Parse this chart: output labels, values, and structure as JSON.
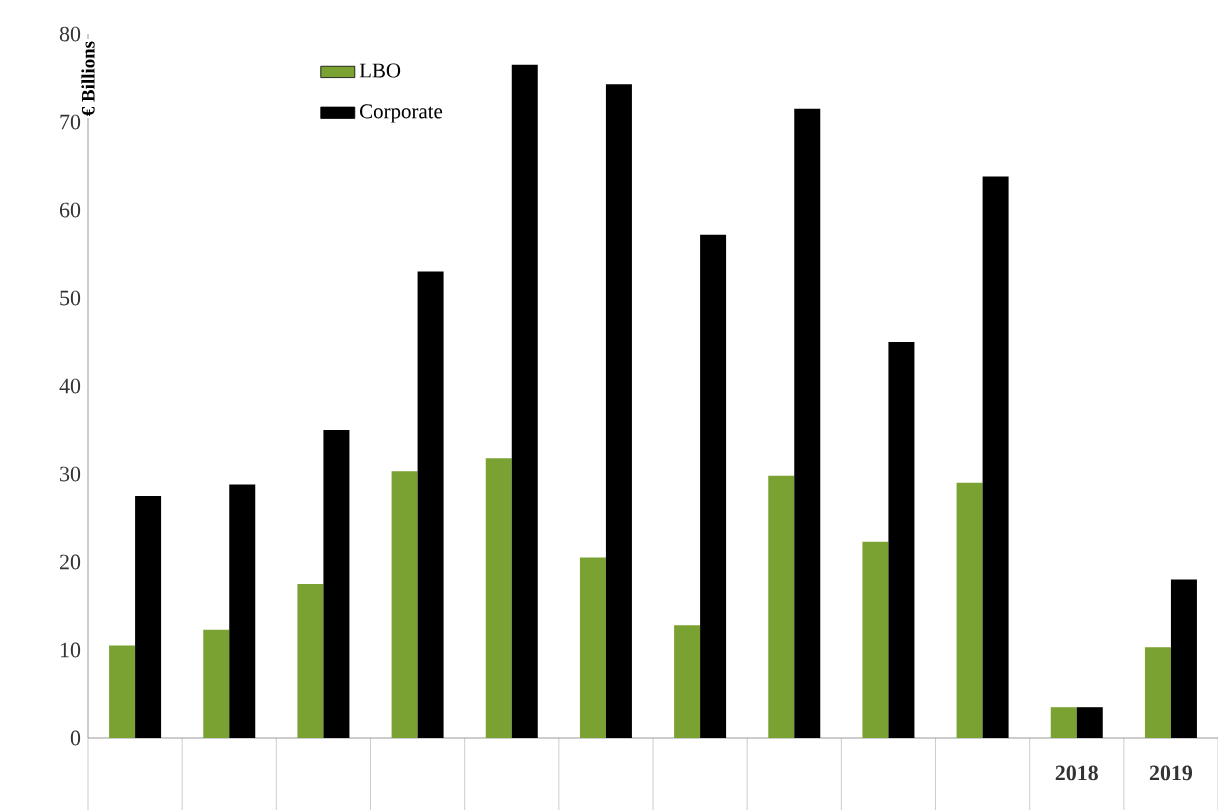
{
  "chart_data": {
    "type": "bar",
    "ylabel": "€ Billions",
    "categories": [
      null,
      null,
      null,
      null,
      null,
      null,
      null,
      null,
      null,
      null,
      "2018",
      "2019"
    ],
    "series": [
      {
        "name": "LBO",
        "color": "#7aa232",
        "values": [
          10.5,
          12.3,
          17.5,
          30.3,
          31.8,
          20.5,
          12.8,
          29.8,
          22.3,
          29,
          3.5,
          10.3
        ]
      },
      {
        "name": "Corporate",
        "color": "#000000",
        "values": [
          27.5,
          28.8,
          35,
          53,
          76.5,
          74.3,
          57.2,
          71.5,
          45,
          63.8,
          3.5,
          18
        ]
      }
    ],
    "ylim": [
      0,
      80
    ],
    "yticks": [
      0,
      10,
      20,
      30,
      40,
      50,
      60,
      70,
      80
    ],
    "legend": "top left",
    "grid": false
  }
}
